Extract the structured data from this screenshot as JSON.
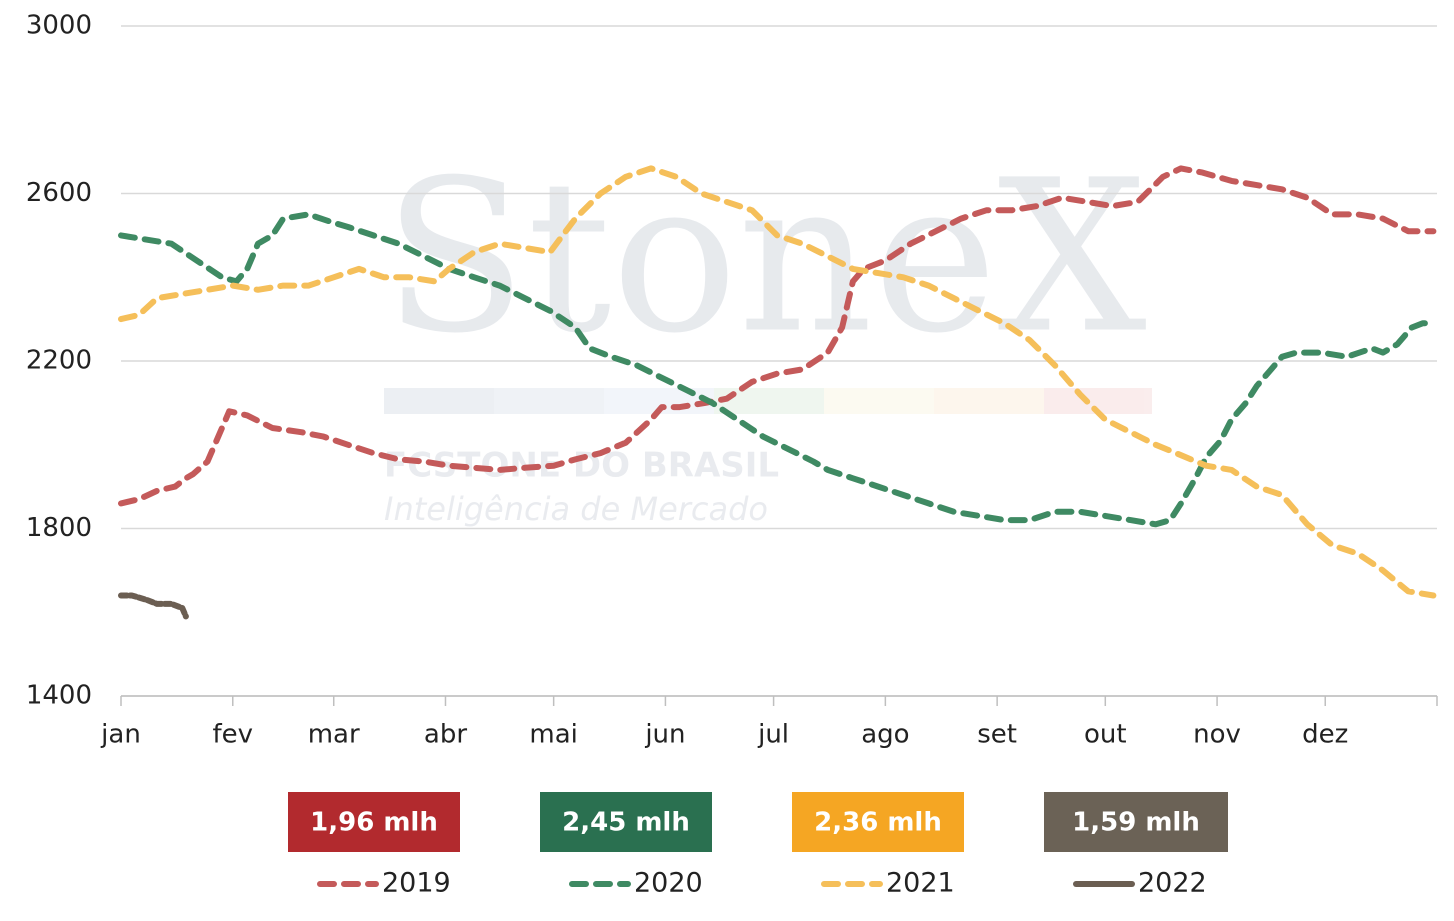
{
  "chart_data": {
    "type": "line",
    "watermark": {
      "brand": "StoneX",
      "company": "FCSTONE DO BRASIL",
      "tagline": "Inteligência de Mercado"
    },
    "xlim": [
      0,
      365
    ],
    "xticks": [
      {
        "value": 0,
        "label": "jan"
      },
      {
        "value": 31,
        "label": "fev"
      },
      {
        "value": 59,
        "label": "mar"
      },
      {
        "value": 90,
        "label": "abr"
      },
      {
        "value": 120,
        "label": "mai"
      },
      {
        "value": 151,
        "label": "jun"
      },
      {
        "value": 181,
        "label": "jul"
      },
      {
        "value": 212,
        "label": "ago"
      },
      {
        "value": 243,
        "label": "set"
      },
      {
        "value": 273,
        "label": "out"
      },
      {
        "value": 304,
        "label": "nov"
      },
      {
        "value": 334,
        "label": "dez"
      }
    ],
    "ylim": [
      1400,
      3000
    ],
    "yticks": [
      1400,
      1800,
      2200,
      2600,
      3000
    ],
    "grid": true,
    "series": [
      {
        "name": "2019",
        "color": "#c45a5a",
        "badge": "1,96 mlh",
        "badge_color": "#b22a2e",
        "x": [
          0,
          5,
          10,
          15,
          18,
          20,
          24,
          28,
          30,
          35,
          42,
          50,
          56,
          63,
          70,
          77,
          84,
          91,
          98,
          105,
          112,
          120,
          126,
          133,
          140,
          147,
          150,
          155,
          162,
          168,
          175,
          182,
          189,
          196,
          200,
          203,
          206,
          212,
          219,
          226,
          233,
          240,
          247,
          254,
          261,
          268,
          275,
          282,
          289,
          294,
          300,
          308,
          315,
          322,
          329,
          336,
          343,
          350,
          357,
          364
        ],
        "values": [
          1860,
          1870,
          1890,
          1900,
          1920,
          1930,
          1960,
          2040,
          2080,
          2070,
          2040,
          2030,
          2020,
          2000,
          1980,
          1965,
          1960,
          1950,
          1945,
          1940,
          1945,
          1950,
          1965,
          1980,
          2005,
          2060,
          2090,
          2090,
          2100,
          2110,
          2150,
          2170,
          2180,
          2220,
          2280,
          2390,
          2420,
          2440,
          2480,
          2510,
          2540,
          2560,
          2560,
          2570,
          2590,
          2580,
          2570,
          2580,
          2640,
          2660,
          2650,
          2630,
          2620,
          2610,
          2590,
          2550,
          2550,
          2540,
          2510,
          2510
        ]
      },
      {
        "name": "2020",
        "color": "#3f8a63",
        "badge": "2,45 mlh",
        "badge_color": "#2a7050",
        "x": [
          0,
          7,
          14,
          21,
          28,
          32,
          35,
          38,
          42,
          45,
          52,
          59,
          63,
          70,
          77,
          84,
          91,
          98,
          105,
          112,
          119,
          126,
          130,
          136,
          143,
          150,
          157,
          164,
          171,
          178,
          185,
          192,
          196,
          203,
          210,
          217,
          224,
          231,
          238,
          245,
          252,
          259,
          266,
          273,
          280,
          287,
          291,
          294,
          298,
          301,
          305,
          308,
          312,
          315,
          319,
          322,
          326,
          333,
          340,
          347,
          350,
          354,
          358,
          361,
          364
        ],
        "values": [
          2500,
          2490,
          2480,
          2440,
          2400,
          2390,
          2420,
          2480,
          2500,
          2540,
          2550,
          2530,
          2520,
          2500,
          2480,
          2450,
          2420,
          2400,
          2380,
          2350,
          2320,
          2280,
          2230,
          2210,
          2190,
          2160,
          2130,
          2100,
          2060,
          2020,
          1990,
          1960,
          1940,
          1920,
          1900,
          1880,
          1860,
          1840,
          1830,
          1820,
          1820,
          1840,
          1840,
          1830,
          1820,
          1810,
          1820,
          1860,
          1920,
          1970,
          2010,
          2060,
          2100,
          2140,
          2180,
          2210,
          2220,
          2220,
          2210,
          2230,
          2220,
          2240,
          2280,
          2290,
          2290
        ]
      },
      {
        "name": "2021",
        "color": "#f5bf5a",
        "badge": "2,36 mlh",
        "badge_color": "#f5a623",
        "x": [
          0,
          5,
          10,
          17,
          24,
          31,
          38,
          45,
          52,
          59,
          66,
          73,
          80,
          87,
          91,
          98,
          105,
          112,
          119,
          126,
          133,
          140,
          147,
          154,
          161,
          168,
          175,
          182,
          189,
          196,
          203,
          210,
          217,
          224,
          231,
          238,
          245,
          252,
          259,
          266,
          273,
          280,
          287,
          294,
          301,
          308,
          315,
          322,
          329,
          336,
          343,
          350,
          357,
          364
        ],
        "values": [
          2300,
          2310,
          2350,
          2360,
          2370,
          2380,
          2370,
          2380,
          2380,
          2400,
          2420,
          2400,
          2400,
          2390,
          2420,
          2460,
          2480,
          2470,
          2460,
          2540,
          2600,
          2640,
          2660,
          2640,
          2600,
          2580,
          2560,
          2500,
          2480,
          2450,
          2420,
          2410,
          2400,
          2380,
          2350,
          2320,
          2290,
          2250,
          2190,
          2120,
          2060,
          2030,
          2000,
          1975,
          1950,
          1940,
          1900,
          1880,
          1810,
          1760,
          1740,
          1700,
          1650,
          1640
        ]
      },
      {
        "name": "2022",
        "color": "#6b5e52",
        "badge": "1,59 mlh",
        "badge_color": "#6b6256",
        "x": [
          0,
          3,
          7,
          10,
          14,
          17,
          18
        ],
        "values": [
          1640,
          1640,
          1630,
          1620,
          1620,
          1610,
          1590
        ]
      }
    ]
  }
}
